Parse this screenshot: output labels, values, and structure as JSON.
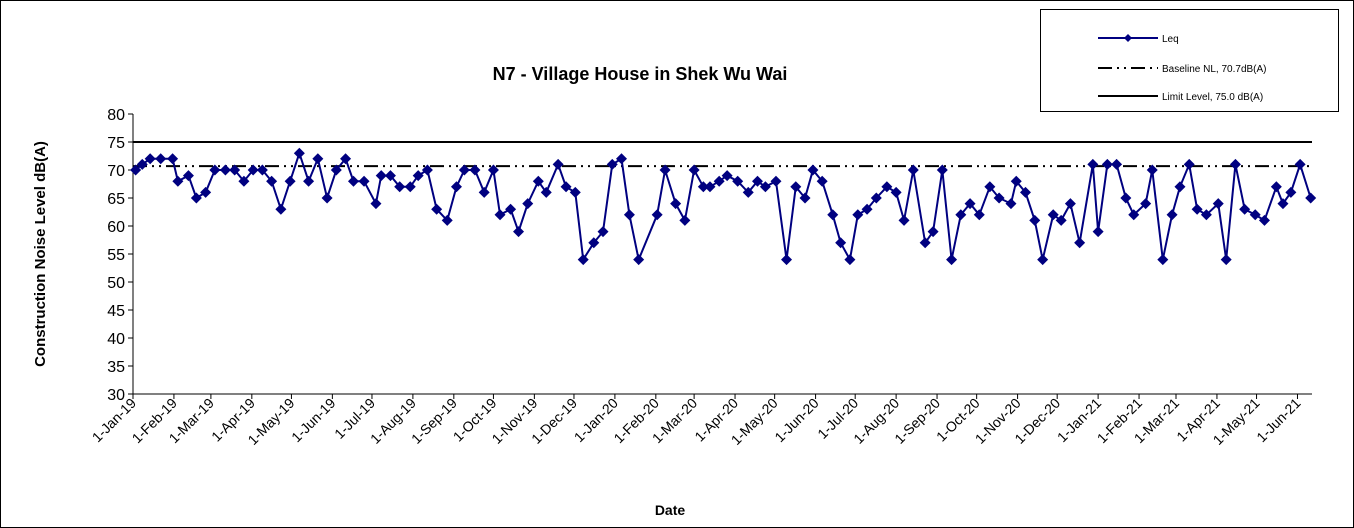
{
  "chart_data": {
    "type": "line",
    "title": "N7 - Village House in Shek Wu Wai",
    "x_label": "Date",
    "y_label": "Construction Noise Level  dB(A)",
    "xlim": [
      "2019-01-01",
      "2021-06-12"
    ],
    "xticks": [
      {
        "value": "2019-01-01",
        "label": "1-Jan-19"
      },
      {
        "value": "2019-02-01",
        "label": "1-Feb-19"
      },
      {
        "value": "2019-03-01",
        "label": "1-Mar-19"
      },
      {
        "value": "2019-04-01",
        "label": "1-Apr-19"
      },
      {
        "value": "2019-05-01",
        "label": "1-May-19"
      },
      {
        "value": "2019-06-01",
        "label": "1-Jun-19"
      },
      {
        "value": "2019-07-01",
        "label": "1-Jul-19"
      },
      {
        "value": "2019-08-01",
        "label": "1-Aug-19"
      },
      {
        "value": "2019-09-01",
        "label": "1-Sep-19"
      },
      {
        "value": "2019-10-01",
        "label": "1-Oct-19"
      },
      {
        "value": "2019-11-01",
        "label": "1-Nov-19"
      },
      {
        "value": "2019-12-01",
        "label": "1-Dec-19"
      },
      {
        "value": "2020-01-01",
        "label": "1-Jan-20"
      },
      {
        "value": "2020-02-01",
        "label": "1-Feb-20"
      },
      {
        "value": "2020-03-01",
        "label": "1-Mar-20"
      },
      {
        "value": "2020-04-01",
        "label": "1-Apr-20"
      },
      {
        "value": "2020-05-01",
        "label": "1-May-20"
      },
      {
        "value": "2020-06-01",
        "label": "1-Jun-20"
      },
      {
        "value": "2020-07-01",
        "label": "1-Jul-20"
      },
      {
        "value": "2020-08-01",
        "label": "1-Aug-20"
      },
      {
        "value": "2020-09-01",
        "label": "1-Sep-20"
      },
      {
        "value": "2020-10-01",
        "label": "1-Oct-20"
      },
      {
        "value": "2020-11-01",
        "label": "1-Nov-20"
      },
      {
        "value": "2020-12-01",
        "label": "1-Dec-20"
      },
      {
        "value": "2021-01-01",
        "label": "1-Jan-21"
      },
      {
        "value": "2021-02-01",
        "label": "1-Feb-21"
      },
      {
        "value": "2021-03-01",
        "label": "1-Mar-21"
      },
      {
        "value": "2021-04-01",
        "label": "1-Apr-21"
      },
      {
        "value": "2021-05-01",
        "label": "1-May-21"
      },
      {
        "value": "2021-06-01",
        "label": "1-Jun-21"
      }
    ],
    "ylim": [
      30,
      80
    ],
    "yticks": [
      30,
      35,
      40,
      45,
      50,
      55,
      60,
      65,
      70,
      75,
      80
    ],
    "x": [
      "2019-01-03",
      "2019-01-08",
      "2019-01-14",
      "2019-01-22",
      "2019-01-31",
      "2019-02-04",
      "2019-02-12",
      "2019-02-18",
      "2019-02-25",
      "2019-03-04",
      "2019-03-12",
      "2019-03-19",
      "2019-03-26",
      "2019-04-02",
      "2019-04-09",
      "2019-04-16",
      "2019-04-23",
      "2019-04-30",
      "2019-05-07",
      "2019-05-14",
      "2019-05-21",
      "2019-05-28",
      "2019-06-04",
      "2019-06-11",
      "2019-06-17",
      "2019-06-25",
      "2019-07-04",
      "2019-07-08",
      "2019-07-15",
      "2019-07-22",
      "2019-07-30",
      "2019-08-05",
      "2019-08-12",
      "2019-08-19",
      "2019-08-27",
      "2019-09-03",
      "2019-09-09",
      "2019-09-17",
      "2019-09-24",
      "2019-10-01",
      "2019-10-06",
      "2019-10-14",
      "2019-10-20",
      "2019-10-27",
      "2019-11-04",
      "2019-11-10",
      "2019-11-19",
      "2019-11-25",
      "2019-12-02",
      "2019-12-08",
      "2019-12-16",
      "2019-12-23",
      "2019-12-30",
      "2020-01-06",
      "2020-01-12",
      "2020-01-19",
      "2020-02-02",
      "2020-02-08",
      "2020-02-16",
      "2020-02-23",
      "2020-03-01",
      "2020-03-08",
      "2020-03-13",
      "2020-03-20",
      "2020-03-26",
      "2020-04-03",
      "2020-04-11",
      "2020-04-18",
      "2020-04-24",
      "2020-05-02",
      "2020-05-10",
      "2020-05-17",
      "2020-05-24",
      "2020-05-30",
      "2020-06-06",
      "2020-06-14",
      "2020-06-20",
      "2020-06-27",
      "2020-07-03",
      "2020-07-10",
      "2020-07-17",
      "2020-07-25",
      "2020-08-01",
      "2020-08-07",
      "2020-08-14",
      "2020-08-23",
      "2020-08-29",
      "2020-09-05",
      "2020-09-12",
      "2020-09-19",
      "2020-09-26",
      "2020-10-03",
      "2020-10-11",
      "2020-10-18",
      "2020-10-27",
      "2020-10-31",
      "2020-11-07",
      "2020-11-14",
      "2020-11-20",
      "2020-11-28",
      "2020-12-04",
      "2020-12-11",
      "2020-12-18",
      "2020-12-28",
      "2021-01-01",
      "2021-01-08",
      "2021-01-15",
      "2021-01-22",
      "2021-01-28",
      "2021-02-06",
      "2021-02-11",
      "2021-02-19",
      "2021-02-26",
      "2021-03-04",
      "2021-03-11",
      "2021-03-17",
      "2021-03-24",
      "2021-04-02",
      "2021-04-08",
      "2021-04-15",
      "2021-04-22",
      "2021-04-30",
      "2021-05-07",
      "2021-05-16",
      "2021-05-21",
      "2021-05-27",
      "2021-06-03",
      "2021-06-11"
    ],
    "series": [
      {
        "name": "Leq",
        "color": "#000080",
        "values": [
          70,
          71,
          72,
          72,
          72,
          68,
          69,
          65,
          66,
          70,
          70,
          70,
          68,
          70,
          70,
          68,
          63,
          68,
          73,
          68,
          72,
          65,
          70,
          72,
          68,
          68,
          64,
          69,
          69,
          67,
          67,
          69,
          70,
          63,
          61,
          67,
          70,
          70,
          66,
          70,
          62,
          63,
          59,
          64,
          68,
          66,
          71,
          67,
          66,
          54,
          57,
          59,
          71,
          72,
          62,
          54,
          62,
          70,
          64,
          61,
          70,
          67,
          67,
          68,
          69,
          68,
          66,
          68,
          67,
          68,
          54,
          67,
          65,
          70,
          68,
          62,
          57,
          54,
          62,
          63,
          65,
          67,
          66,
          61,
          70,
          57,
          59,
          70,
          54,
          62,
          64,
          62,
          67,
          65,
          64,
          68,
          66,
          61,
          54,
          62,
          61,
          64,
          57,
          71,
          59,
          71,
          71,
          65,
          62,
          64,
          70,
          54,
          62,
          67,
          71,
          63,
          62,
          64,
          54,
          71,
          63,
          62,
          61,
          67,
          64,
          66,
          71,
          65
        ]
      }
    ],
    "reference_lines": [
      {
        "name": "Baseline NL, 70.7dB(A)",
        "value": 70.7,
        "style": "dash-dot",
        "color": "#000000"
      },
      {
        "name": "Limit Level, 75.0 dB(A)",
        "value": 75,
        "style": "solid",
        "color": "#000000"
      }
    ]
  }
}
